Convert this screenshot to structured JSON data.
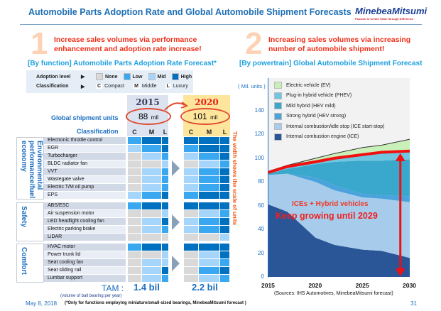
{
  "header": {
    "title": "Automobile Parts Adoption Rate and Global Automobile Shipment Forecasts",
    "logo": "MinebeaMitsumi",
    "tagline": "Passion to Create Value through Difference"
  },
  "left": {
    "number": "1",
    "message_line1": "Increase sales volumes via performance",
    "message_line2": "enhancement and adoption rate increase!",
    "subtitle": "[By function]  Automobile Parts Adoption Rate Forecast*",
    "legend": {
      "adoption_label": "Adoption level",
      "classification_label": "Classification",
      "levels": [
        {
          "name": "None",
          "color": "#d9d9d9"
        },
        {
          "name": "Low",
          "color": "#3aa8f0"
        },
        {
          "name": "Mid",
          "color": "#a6d5fb"
        },
        {
          "name": "High",
          "color": "#0070c0"
        }
      ],
      "classes": [
        {
          "code": "C",
          "name": "Compact"
        },
        {
          "code": "M",
          "name": "Middle"
        },
        {
          "code": "L",
          "name": "Luxury"
        }
      ]
    },
    "shipment_label": "Global shipment units",
    "classification_header": "Classification",
    "years": [
      {
        "year": "2015",
        "units": "88",
        "unit_suffix": "mil",
        "tam": "1.4 bil"
      },
      {
        "year": "2020",
        "units": "101",
        "unit_suffix": "mil",
        "tam": "2.2 bil"
      }
    ],
    "class_cols": [
      "C",
      "M",
      "L"
    ],
    "side_note": "The width shows the scale of units",
    "categories": [
      {
        "name": "Environmental performance/fuel economy",
        "rows": [
          {
            "label": "Electronic throttle control",
            "y2015": [
              "Low",
              "High",
              "High"
            ],
            "y2020": [
              "High",
              "High",
              "High"
            ]
          },
          {
            "label": "EGR",
            "y2015": [
              "Mid",
              "Low",
              "High"
            ],
            "y2020": [
              "Low",
              "High",
              "High"
            ]
          },
          {
            "label": "Turbocharger",
            "y2015": [
              "None",
              "Mid",
              "Low"
            ],
            "y2020": [
              "Mid",
              "Low",
              "High"
            ]
          },
          {
            "label": "BLDC radiator fan",
            "y2015": [
              "None",
              "None",
              "Mid"
            ],
            "y2020": [
              "None",
              "Mid",
              "Low"
            ]
          },
          {
            "label": "VVT",
            "y2015": [
              "None",
              "Mid",
              "Low"
            ],
            "y2020": [
              "Mid",
              "Low",
              "High"
            ]
          },
          {
            "label": "Wastegate valve",
            "y2015": [
              "None",
              "Mid",
              "Low"
            ],
            "y2020": [
              "Mid",
              "Low",
              "High"
            ]
          },
          {
            "label": "Electric T/M oil pump",
            "y2015": [
              "None",
              "Mid",
              "Low"
            ],
            "y2020": [
              "Mid",
              "Low",
              "High"
            ]
          },
          {
            "label": "EPS",
            "y2015": [
              "Mid",
              "Low",
              "High"
            ],
            "y2020": [
              "Low",
              "High",
              "High"
            ]
          }
        ]
      },
      {
        "name": "Safety",
        "rows": [
          {
            "label": "ABS/ESC",
            "y2015": [
              "Low",
              "High",
              "High"
            ],
            "y2020": [
              "High",
              "High",
              "High"
            ]
          },
          {
            "label": "Air suspension motor",
            "y2015": [
              "None",
              "None",
              "Mid"
            ],
            "y2020": [
              "None",
              "Mid",
              "Low"
            ]
          },
          {
            "label": "LED headlight cooling fan",
            "y2015": [
              "None",
              "Mid",
              "High"
            ],
            "y2020": [
              "Mid",
              "Low",
              "High"
            ]
          },
          {
            "label": "Electric parking brake",
            "y2015": [
              "None",
              "Mid",
              "Low"
            ],
            "y2020": [
              "Mid",
              "Low",
              "High"
            ]
          },
          {
            "label": "LiDAR",
            "y2015": [
              "None",
              "None",
              "None"
            ],
            "y2020": [
              "None",
              "None",
              "Mid"
            ]
          }
        ]
      },
      {
        "name": "Comfort",
        "rows": [
          {
            "label": "HVAC motor",
            "y2015": [
              "Low",
              "High",
              "High"
            ],
            "y2020": [
              "High",
              "High",
              "High"
            ]
          },
          {
            "label": "Power trunk lid",
            "y2015": [
              "None",
              "None",
              "Mid"
            ],
            "y2020": [
              "None",
              "Mid",
              "High"
            ]
          },
          {
            "label": "Seat cooling fan",
            "y2015": [
              "None",
              "Mid",
              "Mid"
            ],
            "y2020": [
              "None",
              "Mid",
              "Low"
            ]
          },
          {
            "label": "Seat sliding rail",
            "y2015": [
              "None",
              "Mid",
              "High"
            ],
            "y2020": [
              "None",
              "Low",
              "High"
            ]
          },
          {
            "label": "Lumbar support",
            "y2015": [
              "None",
              "Mid",
              "Low"
            ],
            "y2020": [
              "None",
              "Mid",
              "Low"
            ]
          }
        ]
      }
    ],
    "tam_label": "TAM :",
    "tam_note": "(volume of ball bearing per year)"
  },
  "right": {
    "number": "2",
    "message_line1": "Increasing sales volumes via increasing",
    "message_line2": "number of automobile shipment!",
    "subtitle": "[By powertrain]  Global Automobile Shipment Forecast"
  },
  "chart_data": {
    "type": "area",
    "stacked": true,
    "ylabel": "( Mil. units )",
    "ylim": [
      0,
      160
    ],
    "yticks": [
      0,
      20,
      40,
      60,
      80,
      100,
      120,
      140
    ],
    "x": [
      2015,
      2017,
      2020,
      2022,
      2025,
      2027,
      2030
    ],
    "xticks": [
      "2015",
      "2020",
      "2025",
      "2030"
    ],
    "legend_position": "top-left",
    "series": [
      {
        "name": "Internal combustion engine (ICE)",
        "color": "#2a5597",
        "values": [
          61,
          55,
          33,
          27,
          23,
          22,
          16
        ]
      },
      {
        "name": "Internal combustion/idle stop (ICE start-stop)",
        "color": "#a7cceb",
        "values": [
          25,
          32,
          47,
          46,
          44,
          44,
          47
        ]
      },
      {
        "name": "Strong hybrid (HEV strong)",
        "color": "#4aa3dc",
        "values": [
          0,
          0,
          4,
          4,
          3,
          3,
          5
        ]
      },
      {
        "name": "Mild hybrid (HEV mild)",
        "color": "#3aa7cc",
        "values": [
          1,
          4,
          11,
          20,
          28,
          29,
          31
        ]
      },
      {
        "name": "Plug-in hybrid vehicle (PHEV)",
        "color": "#6fc6e0",
        "values": [
          1,
          2,
          2,
          3,
          5,
          7,
          7
        ]
      },
      {
        "name": "Electric vehicle (EV)",
        "color": "#c9f0b8",
        "values": [
          1,
          1,
          3,
          4,
          6,
          6,
          10
        ]
      }
    ],
    "annotations": {
      "line1": "ICEs + Hybrid vehicles",
      "line2": "Keep growing until 2029"
    },
    "source": "(Sources: IHS Automotives, MinebeaMitsumi forecast)"
  },
  "footer": {
    "date": "May 8, 2018",
    "footnote": "(*Only for functions employing miniature/small-sized bearings, MinebeaMitsumi forecast )",
    "page": "31"
  }
}
